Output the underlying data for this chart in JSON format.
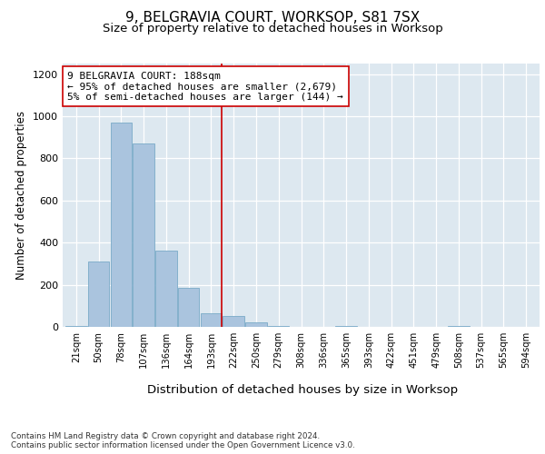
{
  "title1": "9, BELGRAVIA COURT, WORKSOP, S81 7SX",
  "title2": "Size of property relative to detached houses in Worksop",
  "xlabel": "Distribution of detached houses by size in Worksop",
  "ylabel": "Number of detached properties",
  "bin_labels": [
    "21sqm",
    "50sqm",
    "78sqm",
    "107sqm",
    "136sqm",
    "164sqm",
    "193sqm",
    "222sqm",
    "250sqm",
    "279sqm",
    "308sqm",
    "336sqm",
    "365sqm",
    "393sqm",
    "422sqm",
    "451sqm",
    "479sqm",
    "508sqm",
    "537sqm",
    "565sqm",
    "594sqm"
  ],
  "bar_values": [
    5,
    310,
    970,
    870,
    360,
    185,
    65,
    50,
    20,
    5,
    0,
    0,
    5,
    0,
    0,
    0,
    0,
    5,
    0,
    0,
    0
  ],
  "bar_color": "#aac4de",
  "bar_edgecolor": "#7aaac8",
  "vline_x": 6,
  "vline_color": "#cc0000",
  "annotation_text": "9 BELGRAVIA COURT: 188sqm\n← 95% of detached houses are smaller (2,679)\n5% of semi-detached houses are larger (144) →",
  "annotation_box_color": "#ffffff",
  "annotation_box_edgecolor": "#cc0000",
  "ylim": [
    0,
    1250
  ],
  "yticks": [
    0,
    200,
    400,
    600,
    800,
    1000,
    1200
  ],
  "background_color": "#dde8f0",
  "footer_text": "Contains HM Land Registry data © Crown copyright and database right 2024.\nContains public sector information licensed under the Open Government Licence v3.0.",
  "title1_fontsize": 11,
  "title2_fontsize": 9.5,
  "xlabel_fontsize": 9.5,
  "ylabel_fontsize": 8.5,
  "annotation_fontsize": 8
}
